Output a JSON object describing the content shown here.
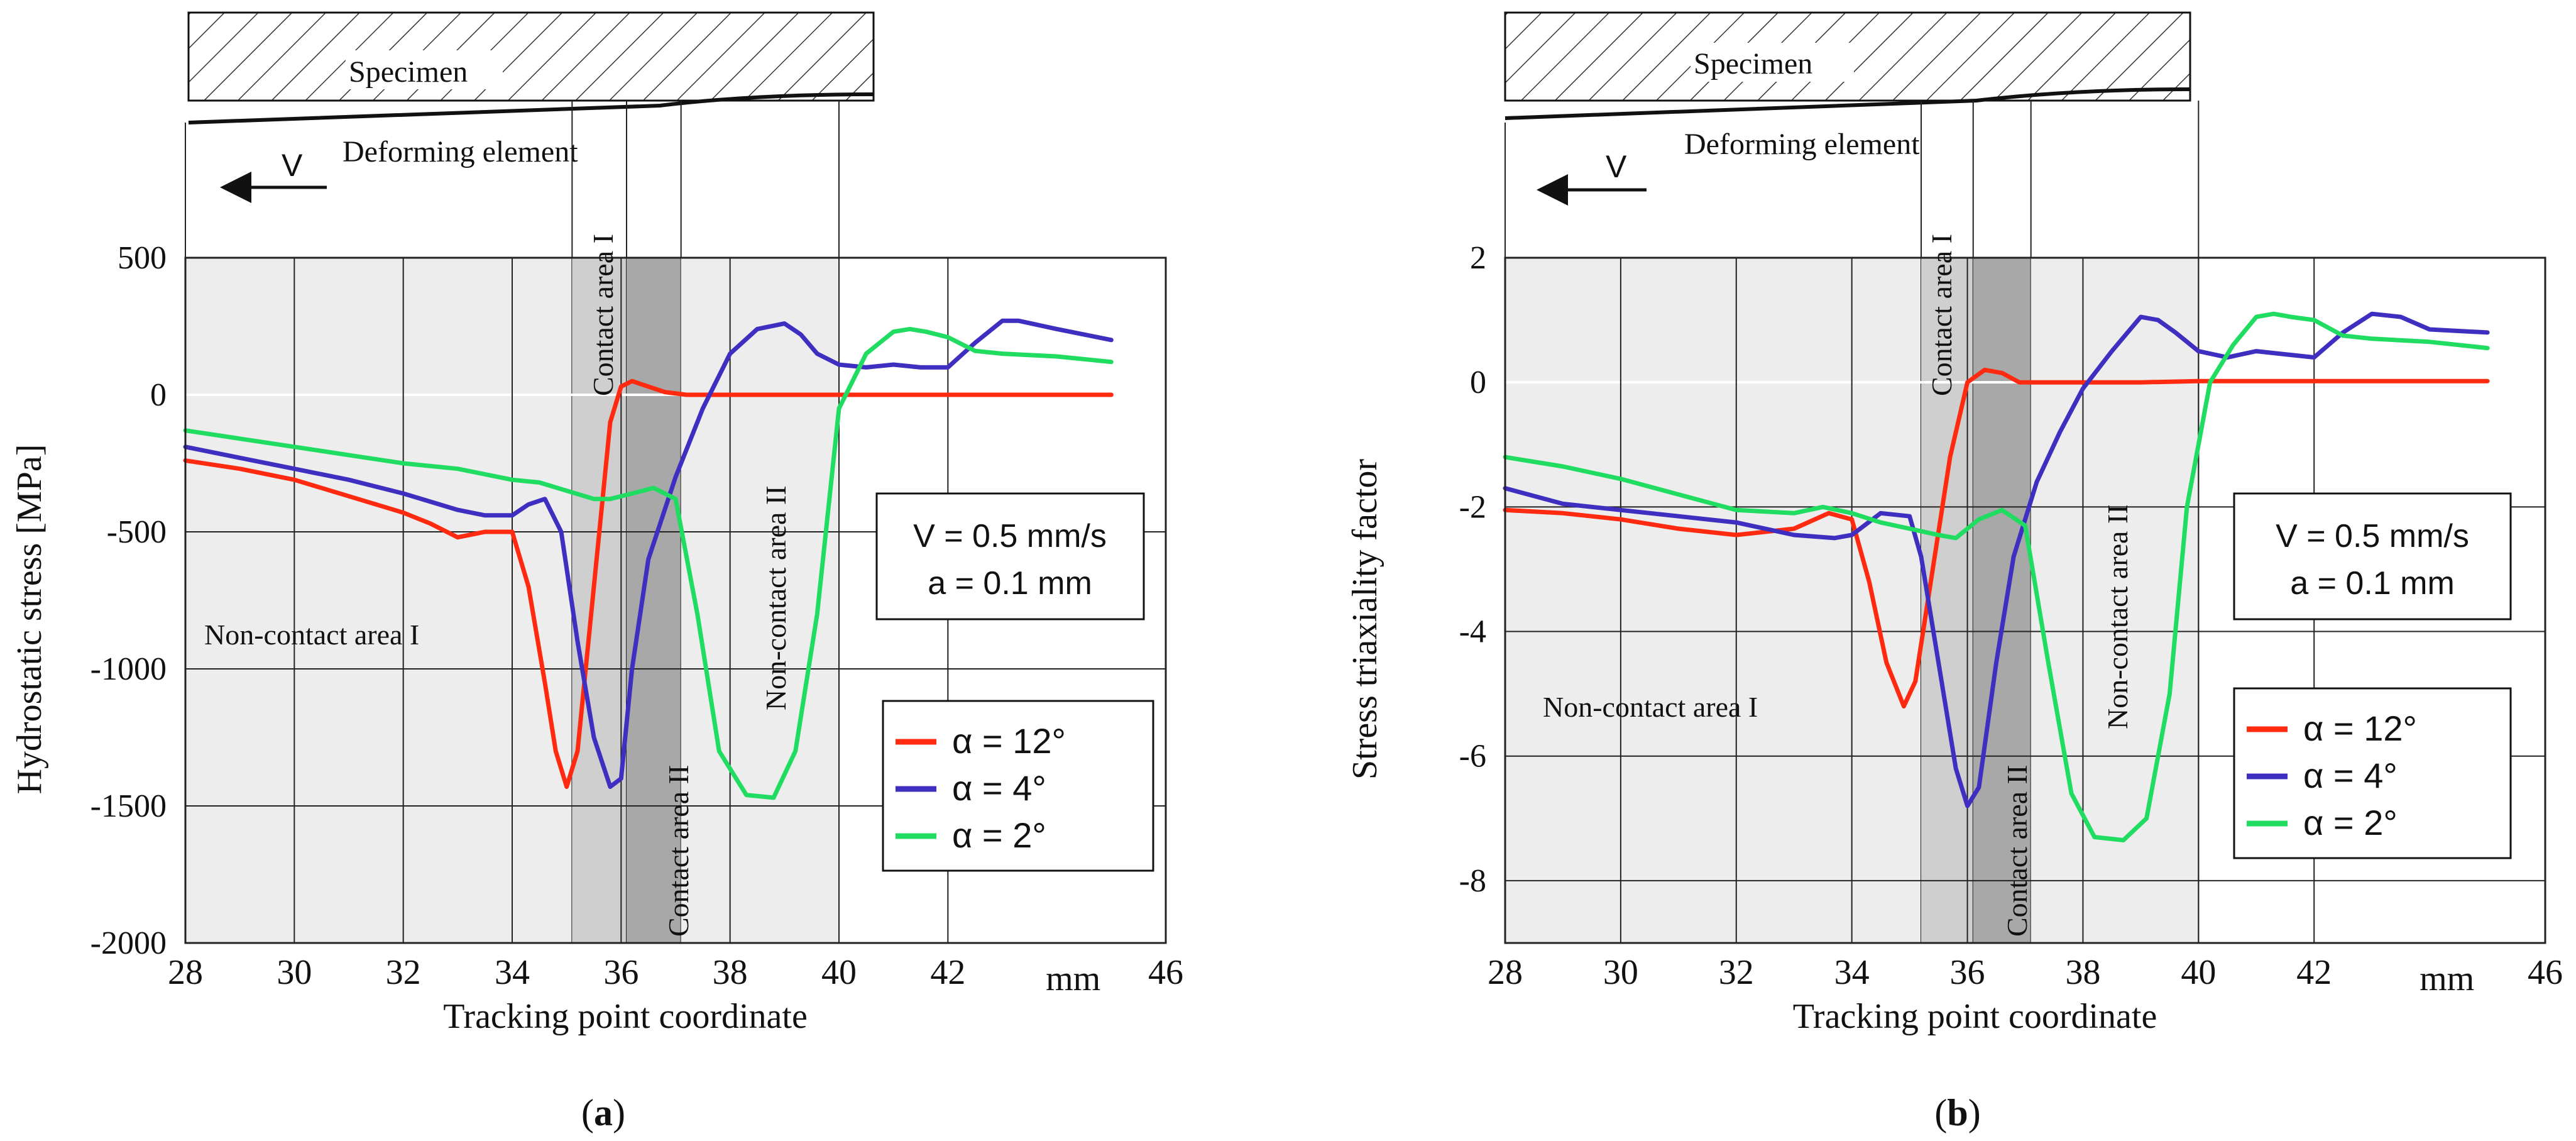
{
  "figure": {
    "panels": [
      {
        "caption_prefix": "(",
        "caption_letter": "a",
        "caption_suffix": ")",
        "specimen_label": "Specimen",
        "deforming_label": "Deforming element",
        "velocity_label": "V",
        "info_lines": [
          "V = 0.5 mm/s",
          "a = 0.1 mm"
        ],
        "legend": [
          "α = 12°",
          "α = 4°",
          "α = 2°"
        ],
        "regions": {
          "non_contact_1": "Non-contact area I",
          "contact_1": "Contact area I",
          "contact_2": "Contact area II",
          "non_contact_2": "Non-contact area II"
        }
      },
      {
        "caption_prefix": "(",
        "caption_letter": "b",
        "caption_suffix": ")",
        "specimen_label": "Specimen",
        "deforming_label": "Deforming element",
        "velocity_label": "V",
        "info_lines": [
          "V = 0.5 mm/s",
          "a = 0.1 mm"
        ],
        "legend": [
          "α = 12°",
          "α = 4°",
          "α = 2°"
        ],
        "regions": {
          "non_contact_1": "Non-contact area I",
          "contact_1": "Contact area I",
          "contact_2": "Contact area II",
          "non_contact_2": "Non-contact area II"
        }
      }
    ]
  },
  "colors": {
    "alpha_12": "#ff2a10",
    "alpha_4": "#3f2fc0",
    "alpha_2": "#20dc60",
    "region_light": "#ededed",
    "region_mid": "#cfcfcf",
    "region_dark": "#a8a8a8",
    "grid": "#222222"
  },
  "chart_data": [
    {
      "type": "line",
      "title": "",
      "xlabel": "Tracking point coordinate",
      "ylabel": "Hydrostatic stress [MPa]",
      "xlim": [
        28,
        46
      ],
      "ylim": [
        -2000,
        500
      ],
      "x_ticks": [
        28,
        30,
        32,
        34,
        36,
        38,
        40,
        42,
        46
      ],
      "x_unit_label": "mm",
      "y_ticks": [
        500,
        0,
        -500,
        -1000,
        -1500,
        -2000
      ],
      "grid": true,
      "series": [
        {
          "name": "α = 12°",
          "x": [
            28,
            29,
            30,
            31,
            32,
            32.5,
            33,
            33.5,
            34,
            34.3,
            34.6,
            34.8,
            35,
            35.2,
            35.5,
            35.8,
            36,
            36.2,
            36.5,
            36.8,
            37.2,
            38,
            39,
            40,
            41,
            42,
            43,
            44,
            45
          ],
          "y": [
            -240,
            -270,
            -310,
            -370,
            -430,
            -470,
            -520,
            -500,
            -500,
            -700,
            -1050,
            -1300,
            -1430,
            -1300,
            -700,
            -100,
            30,
            50,
            30,
            10,
            0,
            0,
            0,
            0,
            0,
            0,
            0,
            0,
            0
          ]
        },
        {
          "name": "α = 4°",
          "x": [
            28,
            29,
            30,
            31,
            32,
            33,
            33.5,
            34,
            34.3,
            34.6,
            34.9,
            35.2,
            35.5,
            35.8,
            36,
            36.2,
            36.5,
            37,
            37.5,
            38,
            38.5,
            39,
            39.3,
            39.6,
            40,
            40.5,
            41,
            41.5,
            42,
            42.5,
            43,
            43.3,
            44,
            45
          ],
          "y": [
            -190,
            -230,
            -270,
            -310,
            -360,
            -420,
            -440,
            -440,
            -400,
            -380,
            -500,
            -900,
            -1250,
            -1430,
            -1400,
            -1000,
            -600,
            -300,
            -50,
            150,
            240,
            260,
            220,
            150,
            110,
            100,
            110,
            100,
            100,
            190,
            270,
            270,
            240,
            200
          ]
        },
        {
          "name": "α = 2°",
          "x": [
            28,
            29,
            30,
            31,
            32,
            33,
            33.5,
            34,
            34.5,
            35,
            35.5,
            35.8,
            36.2,
            36.6,
            37,
            37.4,
            37.8,
            38.3,
            38.8,
            39.2,
            39.6,
            40,
            40.5,
            41,
            41.3,
            41.6,
            42,
            42.5,
            43,
            44,
            45
          ],
          "y": [
            -130,
            -160,
            -190,
            -220,
            -250,
            -270,
            -290,
            -310,
            -320,
            -350,
            -380,
            -380,
            -360,
            -340,
            -380,
            -800,
            -1300,
            -1460,
            -1470,
            -1300,
            -800,
            -50,
            150,
            230,
            240,
            230,
            210,
            160,
            150,
            140,
            120
          ]
        }
      ],
      "regions": [
        {
          "name": "Non-contact area I",
          "x": [
            28,
            35.1
          ],
          "shade": "light"
        },
        {
          "name": "Contact area I",
          "x": [
            35.1,
            36.1
          ],
          "shade": "mid"
        },
        {
          "name": "Contact area II",
          "x": [
            36.1,
            37.1
          ],
          "shade": "dark"
        },
        {
          "name": "Non-contact area II",
          "x": [
            37.1,
            40
          ],
          "shade": "light"
        }
      ],
      "legend_position": "bottom-right"
    },
    {
      "type": "line",
      "title": "",
      "xlabel": "Tracking point coordinate",
      "ylabel": "Stress triaxiality factor",
      "xlim": [
        28,
        46
      ],
      "ylim": [
        -9,
        2
      ],
      "x_ticks": [
        28,
        30,
        32,
        34,
        36,
        38,
        40,
        42,
        46
      ],
      "x_unit_label": "mm",
      "y_ticks": [
        2,
        0,
        -2,
        -4,
        -6,
        -8
      ],
      "grid": true,
      "series": [
        {
          "name": "α = 12°",
          "x": [
            28,
            29,
            30,
            31,
            32,
            33,
            33.6,
            34,
            34.3,
            34.6,
            34.9,
            35.1,
            35.4,
            35.7,
            36,
            36.3,
            36.6,
            36.9,
            37.2,
            38,
            39,
            40,
            41,
            42,
            43,
            44,
            45
          ],
          "y": [
            -2.05,
            -2.1,
            -2.2,
            -2.35,
            -2.45,
            -2.35,
            -2.1,
            -2.2,
            -3.2,
            -4.5,
            -5.2,
            -4.8,
            -3,
            -1.2,
            0,
            0.2,
            0.15,
            0,
            0,
            0,
            0,
            0.02,
            0.02,
            0.02,
            0.02,
            0.02,
            0.02
          ]
        },
        {
          "name": "α = 4°",
          "x": [
            28,
            29,
            30,
            31,
            32,
            33,
            33.7,
            34,
            34.5,
            35,
            35.2,
            35.5,
            35.8,
            36,
            36.2,
            36.5,
            36.8,
            37.2,
            37.6,
            38,
            38.5,
            39,
            39.3,
            39.6,
            40,
            40.5,
            41,
            41.5,
            42,
            42.5,
            43,
            43.5,
            44,
            45
          ],
          "y": [
            -1.7,
            -1.95,
            -2.05,
            -2.15,
            -2.25,
            -2.45,
            -2.5,
            -2.45,
            -2.1,
            -2.15,
            -2.8,
            -4.5,
            -6.2,
            -6.8,
            -6.5,
            -4.5,
            -2.8,
            -1.6,
            -0.8,
            -0.1,
            0.5,
            1.05,
            1.0,
            0.8,
            0.5,
            0.4,
            0.5,
            0.45,
            0.4,
            0.8,
            1.1,
            1.05,
            0.85,
            0.8
          ]
        },
        {
          "name": "α = 2°",
          "x": [
            28,
            29,
            30,
            31,
            32,
            33,
            33.5,
            34,
            34.5,
            35,
            35.5,
            35.8,
            36.2,
            36.6,
            37,
            37.4,
            37.8,
            38.2,
            38.7,
            39.1,
            39.5,
            39.8,
            40.2,
            40.6,
            41,
            41.3,
            41.6,
            42,
            42.5,
            43,
            44,
            45
          ],
          "y": [
            -1.2,
            -1.35,
            -1.55,
            -1.8,
            -2.05,
            -2.1,
            -2.0,
            -2.1,
            -2.25,
            -2.35,
            -2.45,
            -2.5,
            -2.2,
            -2.05,
            -2.3,
            -4.5,
            -6.6,
            -7.3,
            -7.35,
            -7.0,
            -5,
            -2,
            0,
            0.6,
            1.05,
            1.1,
            1.05,
            1.0,
            0.75,
            0.7,
            0.65,
            0.55
          ]
        }
      ],
      "regions": [
        {
          "name": "Non-contact area I",
          "x": [
            28,
            35.2
          ],
          "shade": "light"
        },
        {
          "name": "Contact area I",
          "x": [
            35.2,
            36.1
          ],
          "shade": "mid"
        },
        {
          "name": "Contact area II",
          "x": [
            36.1,
            37.1
          ],
          "shade": "dark"
        },
        {
          "name": "Non-contact area II",
          "x": [
            37.1,
            40
          ],
          "shade": "light"
        }
      ],
      "legend_position": "bottom-right"
    }
  ]
}
